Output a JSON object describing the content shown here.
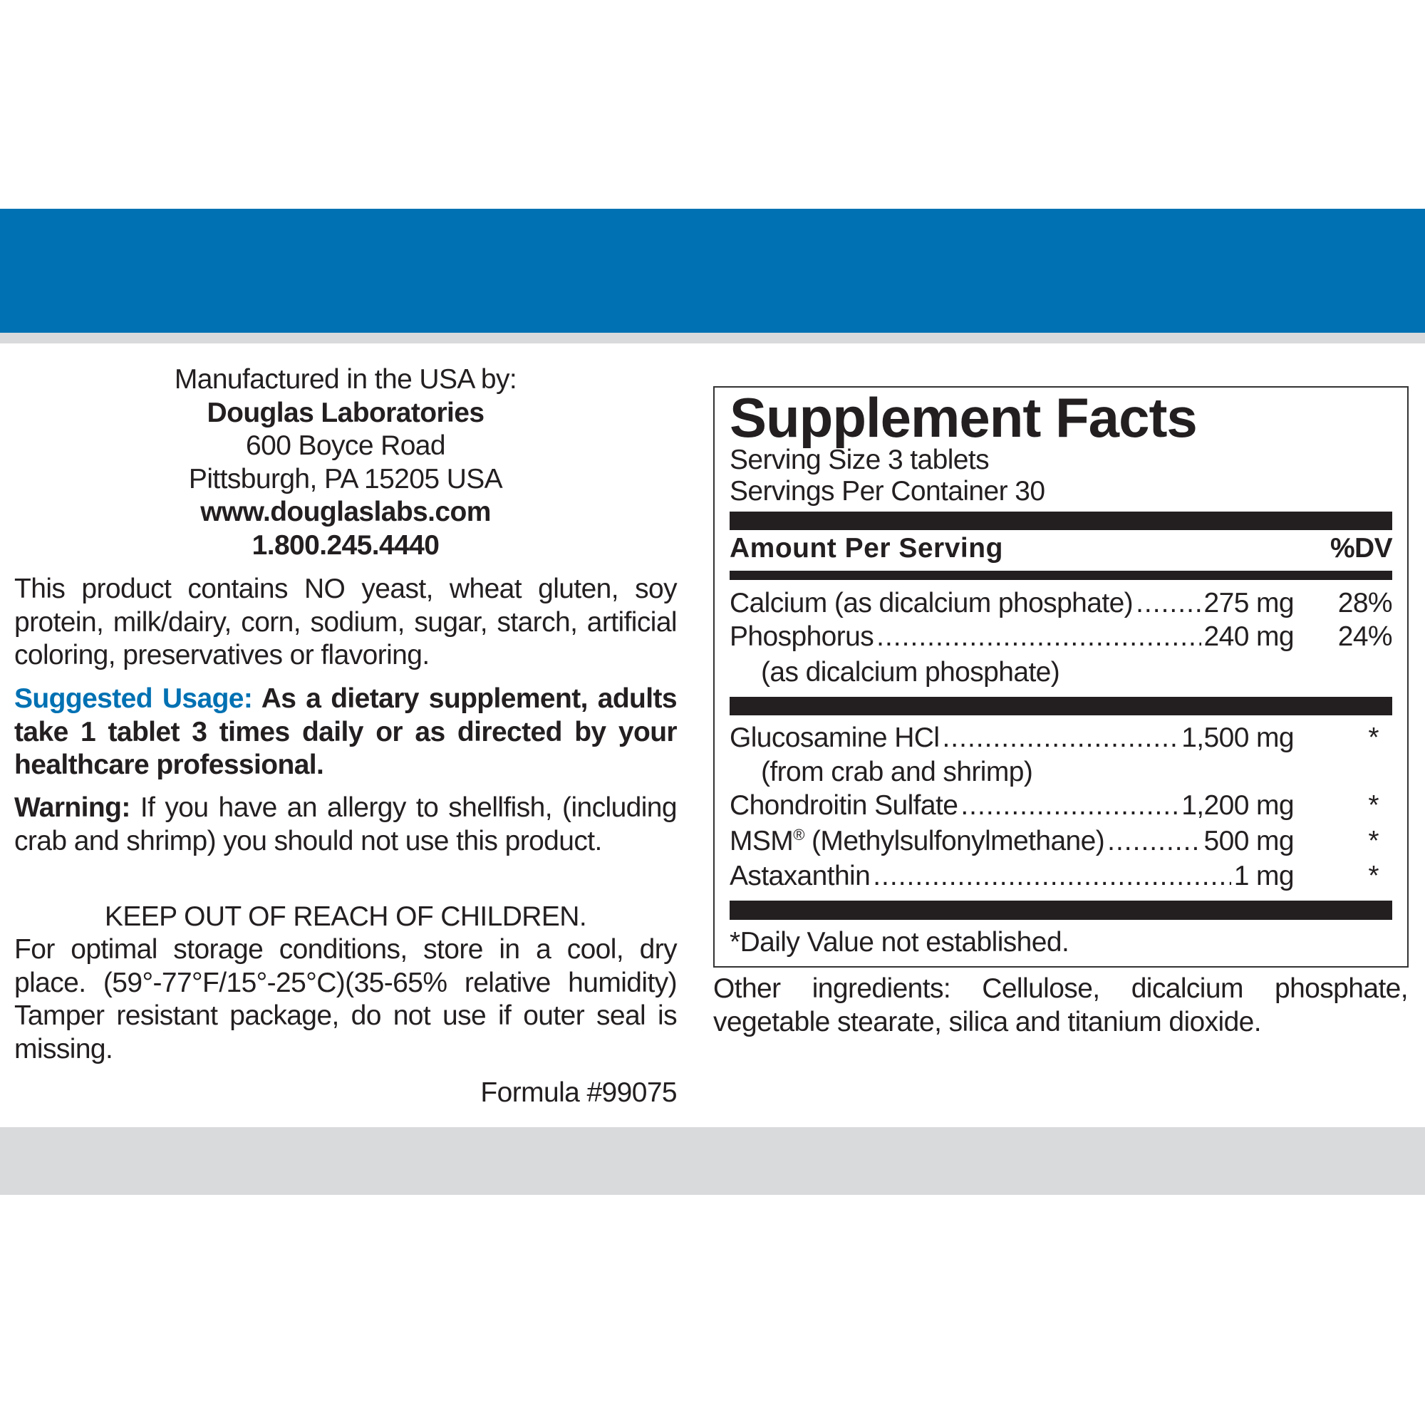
{
  "colors": {
    "band": "#0071b3",
    "gray": "#d9dadc",
    "text": "#231f20"
  },
  "manufacturer": {
    "intro": "Manufactured in the USA by:",
    "name": "Douglas Laboratories",
    "street": "600 Boyce Road",
    "city": "Pittsburgh, PA 15205 USA",
    "website": "www.douglaslabs.com",
    "phone": "1.800.245.4440"
  },
  "free_from": "This product contains NO yeast, wheat gluten, soy protein, milk/dairy, corn, sodium, sugar, starch, artificial coloring, preservatives or flavoring.",
  "usage": {
    "label": "Suggested Usage:",
    "text": "As a dietary supplement, adults take 1 tablet 3 times daily or as directed by your healthcare professional."
  },
  "warning": {
    "label": "Warning:",
    "text": "If you have an allergy to shellfish, (including crab and shrimp) you should not use this product."
  },
  "keep_out": "KEEP OUT OF REACH OF CHILDREN.",
  "storage": "For optimal storage conditions, store in a cool, dry place. (59°-77°F/15°-25°C)(35-65% relative humidity) Tamper resistant package, do not use if outer seal is missing.",
  "formula": "Formula #99075",
  "facts": {
    "title": "Supplement Facts",
    "serving_size": "Serving Size 3 tablets",
    "servings_per_container": "Servings Per Container 30",
    "amount_header": "Amount Per Serving",
    "dv_header": "%DV",
    "group1": [
      {
        "name": "Calcium (as dicalcium phosphate)",
        "amount": "275 mg",
        "dv": "28%"
      },
      {
        "name": "Phosphorus",
        "amount": "240 mg",
        "dv": "24%",
        "note": "(as dicalcium phosphate)"
      }
    ],
    "group2": [
      {
        "name": "Glucosamine HCl",
        "amount": "1,500 mg",
        "dv": "*",
        "note": "(from crab and shrimp)"
      },
      {
        "name": "Chondroitin Sulfate",
        "amount": "1,200 mg",
        "dv": "*"
      },
      {
        "name": "MSM",
        "reg": "®",
        "name_rest": " (Methylsulfonylmethane)",
        "amount": "500 mg",
        "dv": "*"
      },
      {
        "name": "Astaxanthin",
        "amount": "1 mg",
        "dv": "*"
      }
    ],
    "footnote": "*Daily Value not established."
  },
  "other_ingredients": "Other ingredients: Cellulose, dicalcium phosphate, vegetable stearate, silica and titanium dioxide."
}
